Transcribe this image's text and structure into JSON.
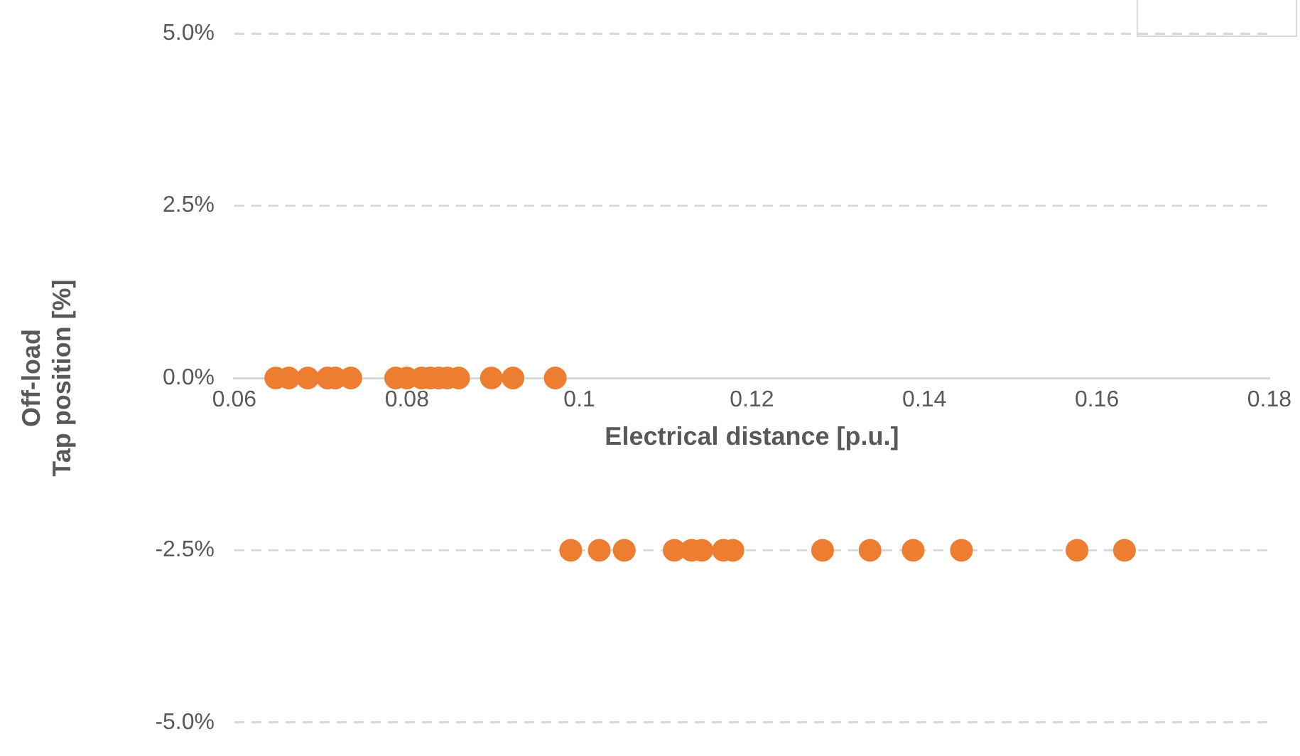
{
  "chart_data": {
    "type": "scatter",
    "xlabel": "Electrical distance [p.u.]",
    "ylabel": "Off-load\nTap position [%]",
    "series": [
      {
        "color": "#ed7d31",
        "x": [
          0.0648,
          0.0663,
          0.0685,
          0.0708,
          0.0717,
          0.0735,
          0.0787,
          0.08,
          0.0817,
          0.0827,
          0.0837,
          0.0847,
          0.086,
          0.0898,
          0.0923,
          0.0972,
          0.099,
          0.1023,
          0.1052,
          0.111,
          0.113,
          0.1142,
          0.1167,
          0.1178,
          0.1282,
          0.1337,
          0.1387,
          0.1443,
          0.1577,
          0.1632
        ],
        "values": [
          0,
          0,
          0,
          0,
          0,
          0,
          0,
          0,
          0,
          0,
          0,
          0,
          0,
          0,
          0,
          0,
          -2.5,
          -2.5,
          -2.5,
          -2.5,
          -2.5,
          -2.5,
          -2.5,
          -2.5,
          -2.5,
          -2.5,
          -2.5,
          -2.5,
          -2.5,
          -2.5
        ]
      }
    ],
    "xlim": [
      0.06,
      0.18
    ],
    "xticks": [
      0.06,
      0.08,
      0.1,
      0.12,
      0.14,
      0.16,
      0.18
    ],
    "ylim": [
      -5,
      5
    ],
    "yticks": [
      {
        "value": -5,
        "label": "-5.0%"
      },
      {
        "value": -2.5,
        "label": "-2.5%"
      },
      {
        "value": 0,
        "label": "0.0%"
      },
      {
        "value": 2.5,
        "label": "2.5%"
      },
      {
        "value": 5,
        "label": "5.0%"
      }
    ],
    "grid": "y",
    "legend": false,
    "marker": "circle"
  }
}
